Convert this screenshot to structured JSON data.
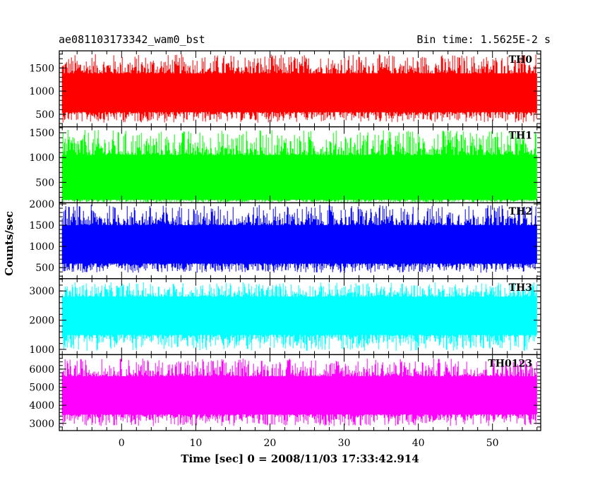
{
  "header": {
    "title": "ae081103173342_wam0_bst",
    "bin_time": "Bin time: 1.5625E-2 s"
  },
  "chart_data": {
    "type": "line",
    "xlabel": "Time [sec] 0 = 2008/11/03 17:33:42.914",
    "ylabel": "Counts/sec",
    "xlim": [
      -8.4,
      56.5
    ],
    "xticks": [
      0,
      10,
      20,
      30,
      40,
      50
    ],
    "x_start": -8.0,
    "x_end": 56.0,
    "grid": false,
    "panels": [
      {
        "name": "TH0",
        "color": "#ff0000",
        "ylim": [
          230,
          1870
        ],
        "yticks": [
          500,
          1000,
          1500
        ],
        "mean": 960,
        "low": 550,
        "high": 1380,
        "min": 320,
        "max": 1800
      },
      {
        "name": "TH1",
        "color": "#00ff00",
        "ylim": [
          90,
          1620
        ],
        "yticks": [
          500,
          1000,
          1500
        ],
        "mean": 460,
        "low": 150,
        "high": 1050,
        "min": 90,
        "max": 1560
      },
      {
        "name": "TH2",
        "color": "#0000ff",
        "ylim": [
          240,
          2030
        ],
        "yticks": [
          500,
          1000,
          1500,
          2000
        ],
        "mean": 1000,
        "low": 600,
        "high": 1500,
        "min": 380,
        "max": 1980
      },
      {
        "name": "TH3",
        "color": "#00ffff",
        "ylim": [
          820,
          3420
        ],
        "yticks": [
          1000,
          2000,
          3000
        ],
        "mean": 2000,
        "low": 1500,
        "high": 2800,
        "min": 950,
        "max": 3300
      },
      {
        "name": "TH0123",
        "color": "#ff00ff",
        "ylim": [
          2600,
          6800
        ],
        "yticks": [
          3000,
          4000,
          5000,
          6000
        ],
        "mean": 4450,
        "low": 3500,
        "high": 5600,
        "min": 2850,
        "max": 6600
      }
    ]
  }
}
